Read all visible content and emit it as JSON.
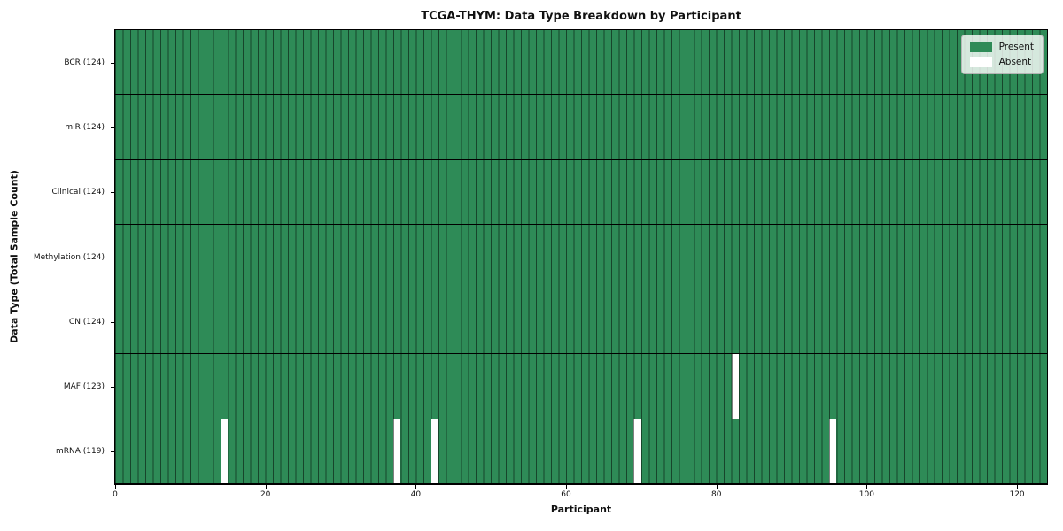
{
  "chart_data": {
    "type": "heatmap",
    "title": "TCGA-THYM: Data Type Breakdown by Participant",
    "xlabel": "Participant",
    "ylabel": "Data Type (Total Sample Count)",
    "n_participants": 124,
    "xlim": [
      0,
      124
    ],
    "x_ticks": [
      0,
      20,
      40,
      60,
      80,
      100,
      120
    ],
    "grid": "cell-borders-on",
    "legend_position": "upper-right",
    "legend": [
      {
        "label": "Present",
        "color": "#2e8b57"
      },
      {
        "label": "Absent",
        "color": "#ffffff"
      }
    ],
    "colors": {
      "present": "#2e8b57",
      "absent": "#ffffff",
      "cell_border": "rgba(0,0,0,0.50)",
      "row_separator": "#000000",
      "plot_border": "#000000"
    },
    "rows": [
      {
        "label": "BCR",
        "count": 124,
        "display": "BCR (124)",
        "absent_participants": []
      },
      {
        "label": "miR",
        "count": 124,
        "display": "miR (124)",
        "absent_participants": []
      },
      {
        "label": "Clinical",
        "count": 124,
        "display": "Clinical (124)",
        "absent_participants": []
      },
      {
        "label": "Methylation",
        "count": 124,
        "display": "Methylation (124)",
        "absent_participants": []
      },
      {
        "label": "CN",
        "count": 124,
        "display": "CN (124)",
        "absent_participants": []
      },
      {
        "label": "MAF",
        "count": 123,
        "display": "MAF (123)",
        "absent_participants": [
          82
        ]
      },
      {
        "label": "mRNA",
        "count": 119,
        "display": "mRNA (119)",
        "absent_participants": [
          14,
          37,
          42,
          69,
          95
        ]
      }
    ]
  }
}
